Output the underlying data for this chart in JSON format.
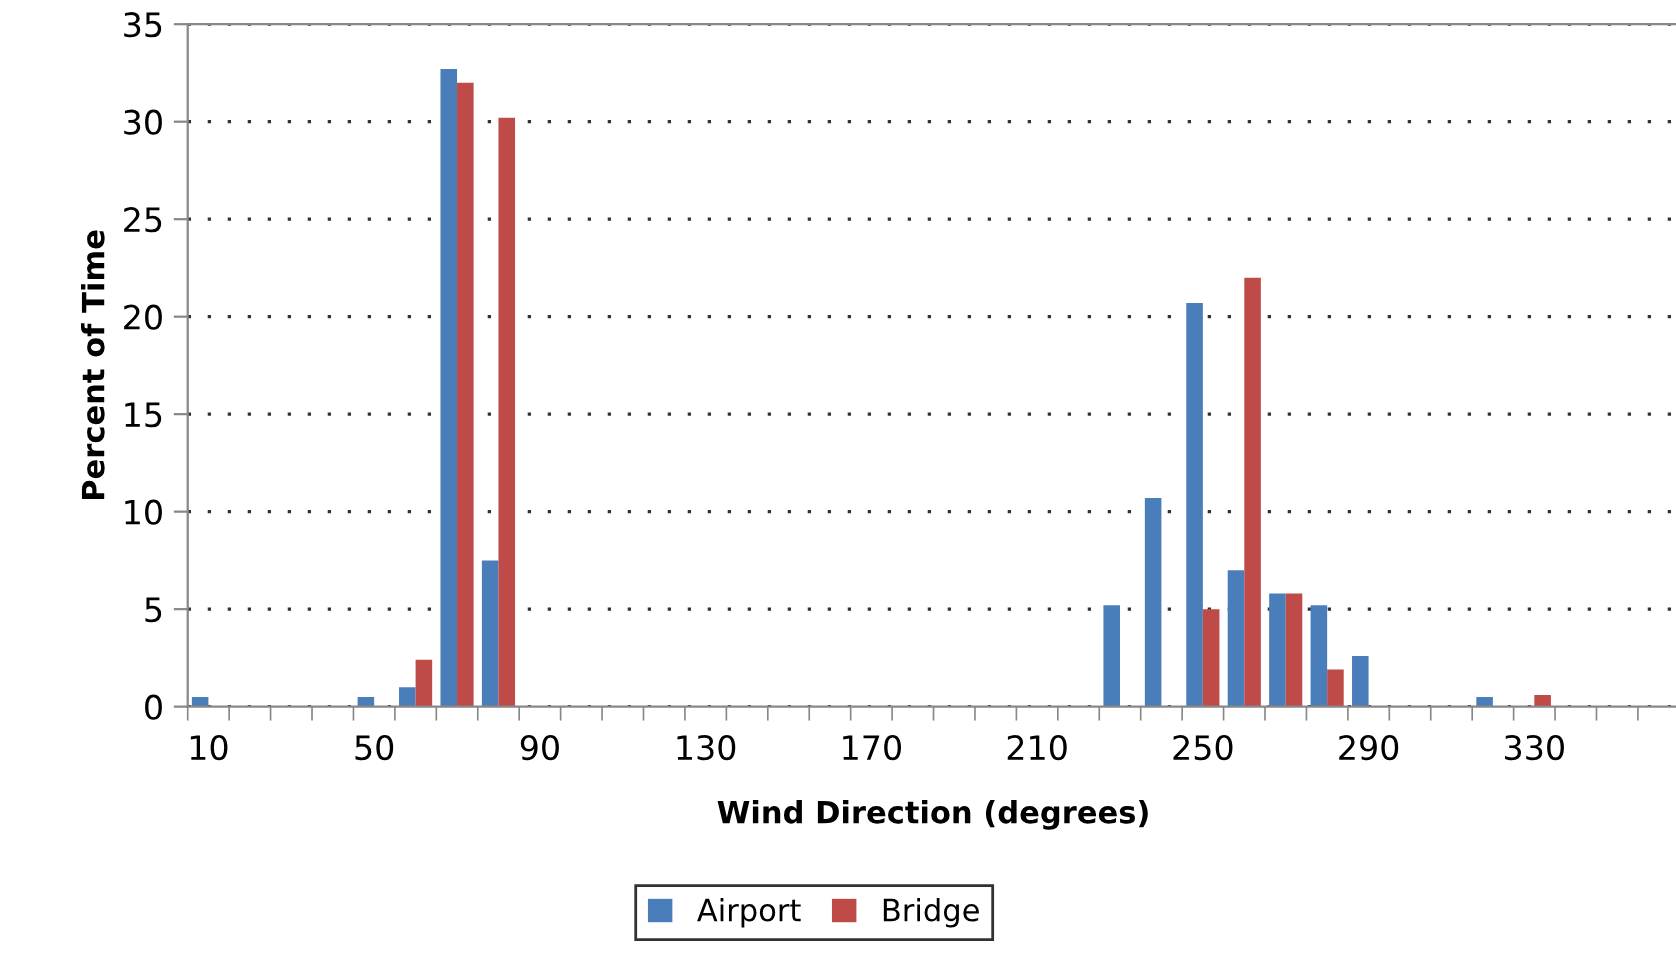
{
  "chart_data": {
    "type": "bar",
    "xlabel": "Wind Direction (degrees)",
    "ylabel": "Percent of Time",
    "categories": [
      "10",
      null,
      null,
      null,
      "50",
      null,
      null,
      null,
      "90",
      null,
      null,
      null,
      "130",
      null,
      null,
      null,
      "170",
      null,
      null,
      null,
      "210",
      null,
      null,
      null,
      "250",
      null,
      null,
      null,
      "290",
      null,
      null,
      null,
      "330",
      null,
      null,
      null
    ],
    "series": [
      {
        "name": "Airport",
        "color": "#4a7ebb",
        "values": [
          0.5,
          0,
          0,
          0,
          0.5,
          1.0,
          32.7,
          7.5,
          0,
          0,
          0,
          0,
          0,
          0,
          0,
          0,
          0,
          0,
          0,
          0,
          0,
          0,
          5.2,
          10.7,
          20.7,
          7.0,
          5.8,
          5.2,
          2.6,
          0,
          0,
          0.5,
          0,
          0,
          0,
          0
        ]
      },
      {
        "name": "Bridge",
        "color": "#be4b48",
        "values": [
          0,
          0,
          0,
          0,
          0,
          2.4,
          32.0,
          30.2,
          0,
          0,
          0,
          0,
          0,
          0,
          0,
          0,
          0,
          0,
          0,
          0,
          0,
          0,
          0,
          0,
          5.0,
          22.0,
          5.8,
          1.9,
          0,
          0,
          0,
          0,
          0.6,
          0,
          0,
          0
        ]
      }
    ],
    "ylim": [
      0,
      35
    ],
    "yticks": [
      0,
      5,
      10,
      15,
      20,
      25,
      30,
      35
    ],
    "grid": "y",
    "legend": "bottom"
  }
}
